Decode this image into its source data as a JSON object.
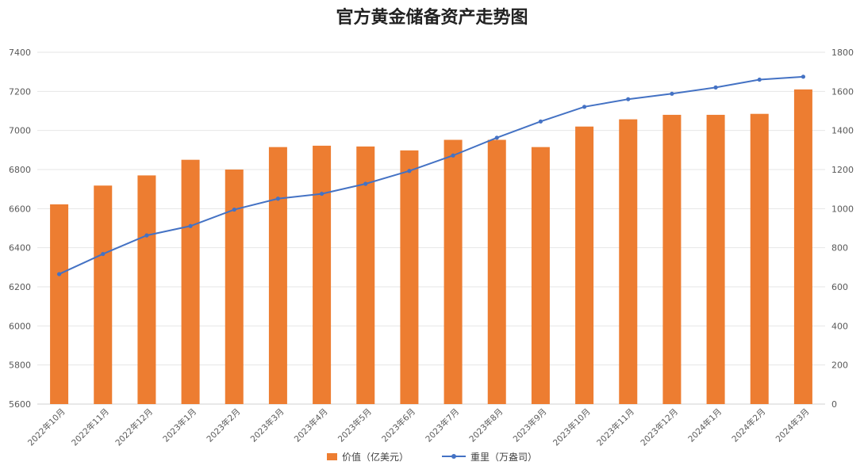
{
  "chart_data": {
    "type": "bar+line",
    "title": "官方黄金储备资产走势图",
    "categories": [
      "2022年10月",
      "2022年11月",
      "2022年12月",
      "2023年1月",
      "2023年2月",
      "2023年3月",
      "2023年4月",
      "2023年5月",
      "2023年6月",
      "2023年7月",
      "2023年8月",
      "2023年9月",
      "2023年10月",
      "2023年11月",
      "2023年12月",
      "2024年1月",
      "2024年2月",
      "2024年3月"
    ],
    "series": [
      {
        "name": "价值（亿美元）",
        "type": "bar",
        "axis": "left",
        "color": "#ED7D31",
        "values": [
          6622,
          6718,
          6770,
          6850,
          6800,
          6915,
          6922,
          6918,
          6898,
          6952,
          6952,
          6915,
          7020,
          7057,
          7080,
          7080,
          7085,
          7210
        ]
      },
      {
        "name": "重里（万盎司）",
        "type": "line",
        "axis": "right",
        "color": "#4472C4",
        "values": [
          665,
          768,
          863,
          911,
          995,
          1051,
          1076,
          1127,
          1193,
          1272,
          1363,
          1446,
          1521,
          1560,
          1588,
          1620,
          1660,
          1675
        ]
      }
    ],
    "y_left": {
      "min": 5600,
      "max": 7400,
      "ticks": [
        "5600",
        "5800",
        "6000",
        "6200",
        "6400",
        "6600",
        "6800",
        "7000",
        "7200",
        "7400"
      ]
    },
    "y_right": {
      "min": 0,
      "max": 1800,
      "ticks": [
        "0",
        "200",
        "400",
        "600",
        "800",
        "1000",
        "1200",
        "1400",
        "1600",
        "1800"
      ]
    },
    "grid": true,
    "legend_position": "bottom"
  }
}
